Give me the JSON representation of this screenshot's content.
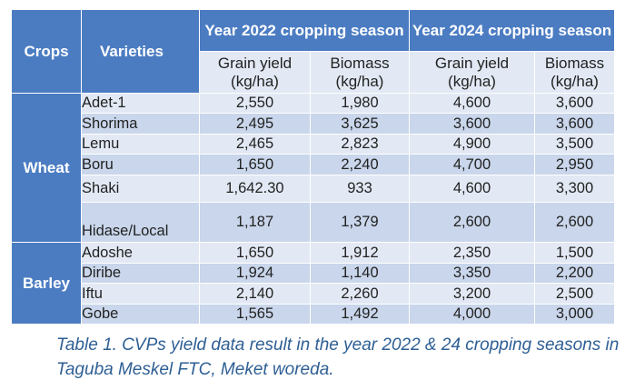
{
  "table": {
    "headers": {
      "crops": "Crops",
      "varieties": "Varieties",
      "year_2022": "Year 2022 cropping season",
      "year_2024": "Year 2024 cropping season",
      "grain_yield": "Grain yield (kg/ha)",
      "biomass": "Biomass (kg/ha)"
    },
    "crops": {
      "wheat": "Wheat",
      "barley": "Barley"
    },
    "rows": [
      {
        "variety": "Adet-1",
        "gy2022": "2,550",
        "bm2022": "1,980",
        "gy2024": "4,600",
        "bm2024": "3,600"
      },
      {
        "variety": "Shorima",
        "gy2022": "2,495",
        "bm2022": "3,625",
        "gy2024": "3,600",
        "bm2024": "3,600"
      },
      {
        "variety": "Lemu",
        "gy2022": "2,465",
        "bm2022": "2,823",
        "gy2024": "4,900",
        "bm2024": "3,500"
      },
      {
        "variety": "Boru",
        "gy2022": "1,650",
        "bm2022": "2,240",
        "gy2024": "4,700",
        "bm2024": "2,950"
      },
      {
        "variety": "Shaki",
        "gy2022": "1,642.30",
        "bm2022": "933",
        "gy2024": "4,600",
        "bm2024": "3,300"
      },
      {
        "variety": "Hidase/Local",
        "gy2022": "1,187",
        "bm2022": "1,379",
        "gy2024": "2,600",
        "bm2024": "2,600"
      },
      {
        "variety": "Adoshe",
        "gy2022": "1,650",
        "bm2022": "1,912",
        "gy2024": "2,350",
        "bm2024": "1,500"
      },
      {
        "variety": "Diribe",
        "gy2022": "1,924",
        "bm2022": "1,140",
        "gy2024": "3,350",
        "bm2024": "2,200"
      },
      {
        "variety": "Iftu",
        "gy2022": "2,140",
        "bm2022": "2,260",
        "gy2024": "3,200",
        "bm2024": "2,500"
      },
      {
        "variety": "Gobe",
        "gy2022": "1,565",
        "bm2022": "1,492",
        "gy2024": "4,000",
        "bm2024": "3,000"
      }
    ]
  },
  "caption": "Table 1. CVPs yield data result in the year 2022 & 24 cropping seasons in Taguba Meskel FTC, Meket woreda."
}
